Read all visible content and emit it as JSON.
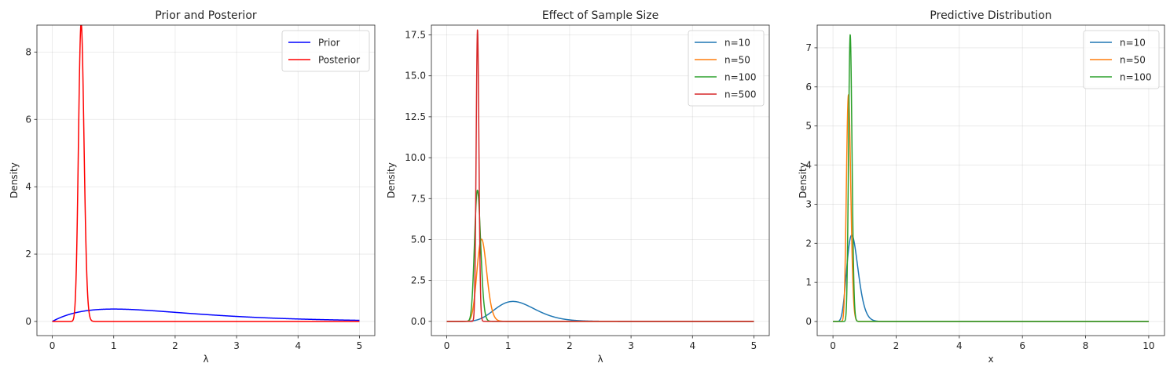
{
  "chart_data": [
    {
      "type": "line",
      "title": "Prior and Posterior",
      "xlabel": "λ",
      "ylabel": "Density",
      "xlim": [
        -0.25,
        5.25
      ],
      "ylim": [
        -0.42,
        8.8
      ],
      "xticks": [
        0,
        1,
        2,
        3,
        4,
        5
      ],
      "xtick_labels": [
        "0",
        "1",
        "2",
        "3",
        "4",
        "5"
      ],
      "yticks": [
        0,
        2,
        4,
        6,
        8
      ],
      "ytick_labels": [
        "0",
        "2",
        "4",
        "6",
        "8"
      ],
      "grid": true,
      "legend_position": "top-right",
      "series": [
        {
          "name": "Prior",
          "color": "#0000ff",
          "dist": "gamma",
          "shape": 2,
          "rate": 1
        },
        {
          "name": "Posterior",
          "color": "#ff0000",
          "dist": "gamma",
          "shape": 110,
          "rate": 232,
          "peak_x": 0.47,
          "peak_y": 8.35
        }
      ]
    },
    {
      "type": "line",
      "title": "Effect of Sample Size",
      "xlabel": "λ",
      "ylabel": "Density",
      "xlim": [
        -0.25,
        5.25
      ],
      "ylim": [
        -0.87,
        18.1
      ],
      "xticks": [
        0,
        1,
        2,
        3,
        4,
        5
      ],
      "xtick_labels": [
        "0",
        "1",
        "2",
        "3",
        "4",
        "5"
      ],
      "yticks": [
        0,
        2.5,
        5,
        7.5,
        10,
        12.5,
        15,
        17.5
      ],
      "ytick_labels": [
        "0.0",
        "2.5",
        "5.0",
        "7.5",
        "10.0",
        "12.5",
        "15.0",
        "17.5"
      ],
      "grid": true,
      "legend_position": "top-right",
      "series": [
        {
          "name": "n=10",
          "color": "#1f77b4",
          "dist": "gamma",
          "shape": 12,
          "rate": 10.2,
          "peak_x": 1.08,
          "peak_y": 1.2
        },
        {
          "name": "n=50",
          "color": "#ff7f0e",
          "dist": "gamma",
          "shape": 52,
          "rate": 90,
          "peak_x": 0.57,
          "peak_y": 5.0
        },
        {
          "name": "n=100",
          "color": "#2ca02c",
          "dist": "gamma",
          "shape": 102,
          "rate": 202,
          "peak_x": 0.5,
          "peak_y": 7.8
        },
        {
          "name": "n=500",
          "color": "#d62728",
          "dist": "gamma",
          "shape": 502,
          "rate": 1000,
          "peak_x": 0.5,
          "peak_y": 17.2
        }
      ]
    },
    {
      "type": "line",
      "title": "Predictive Distribution",
      "xlabel": "x",
      "ylabel": "Density",
      "xlim": [
        -0.5,
        10.5
      ],
      "ylim": [
        -0.36,
        7.58
      ],
      "xticks": [
        0,
        2,
        4,
        6,
        8,
        10
      ],
      "xtick_labels": [
        "0",
        "2",
        "4",
        "6",
        "8",
        "10"
      ],
      "yticks": [
        0,
        1,
        2,
        3,
        4,
        5,
        6,
        7
      ],
      "ytick_labels": [
        "0",
        "1",
        "2",
        "3",
        "4",
        "5",
        "6",
        "7"
      ],
      "grid": true,
      "legend_position": "top-right",
      "series": [
        {
          "name": "n=10",
          "color": "#1f77b4",
          "dist": "gamma",
          "shape": 12,
          "rate": 18.5,
          "peak_x": 0.6,
          "peak_y": 2.25,
          "x_max": 10
        },
        {
          "name": "n=50",
          "color": "#ff7f0e",
          "dist": "gamma",
          "shape": 52,
          "rate": 104,
          "peak_x": 0.5,
          "peak_y": 5.75,
          "x_max": 10
        },
        {
          "name": "n=100",
          "color": "#2ca02c",
          "dist": "gamma",
          "shape": 102,
          "rate": 185,
          "peak_x": 0.55,
          "peak_y": 7.2,
          "x_max": 10
        }
      ]
    }
  ]
}
